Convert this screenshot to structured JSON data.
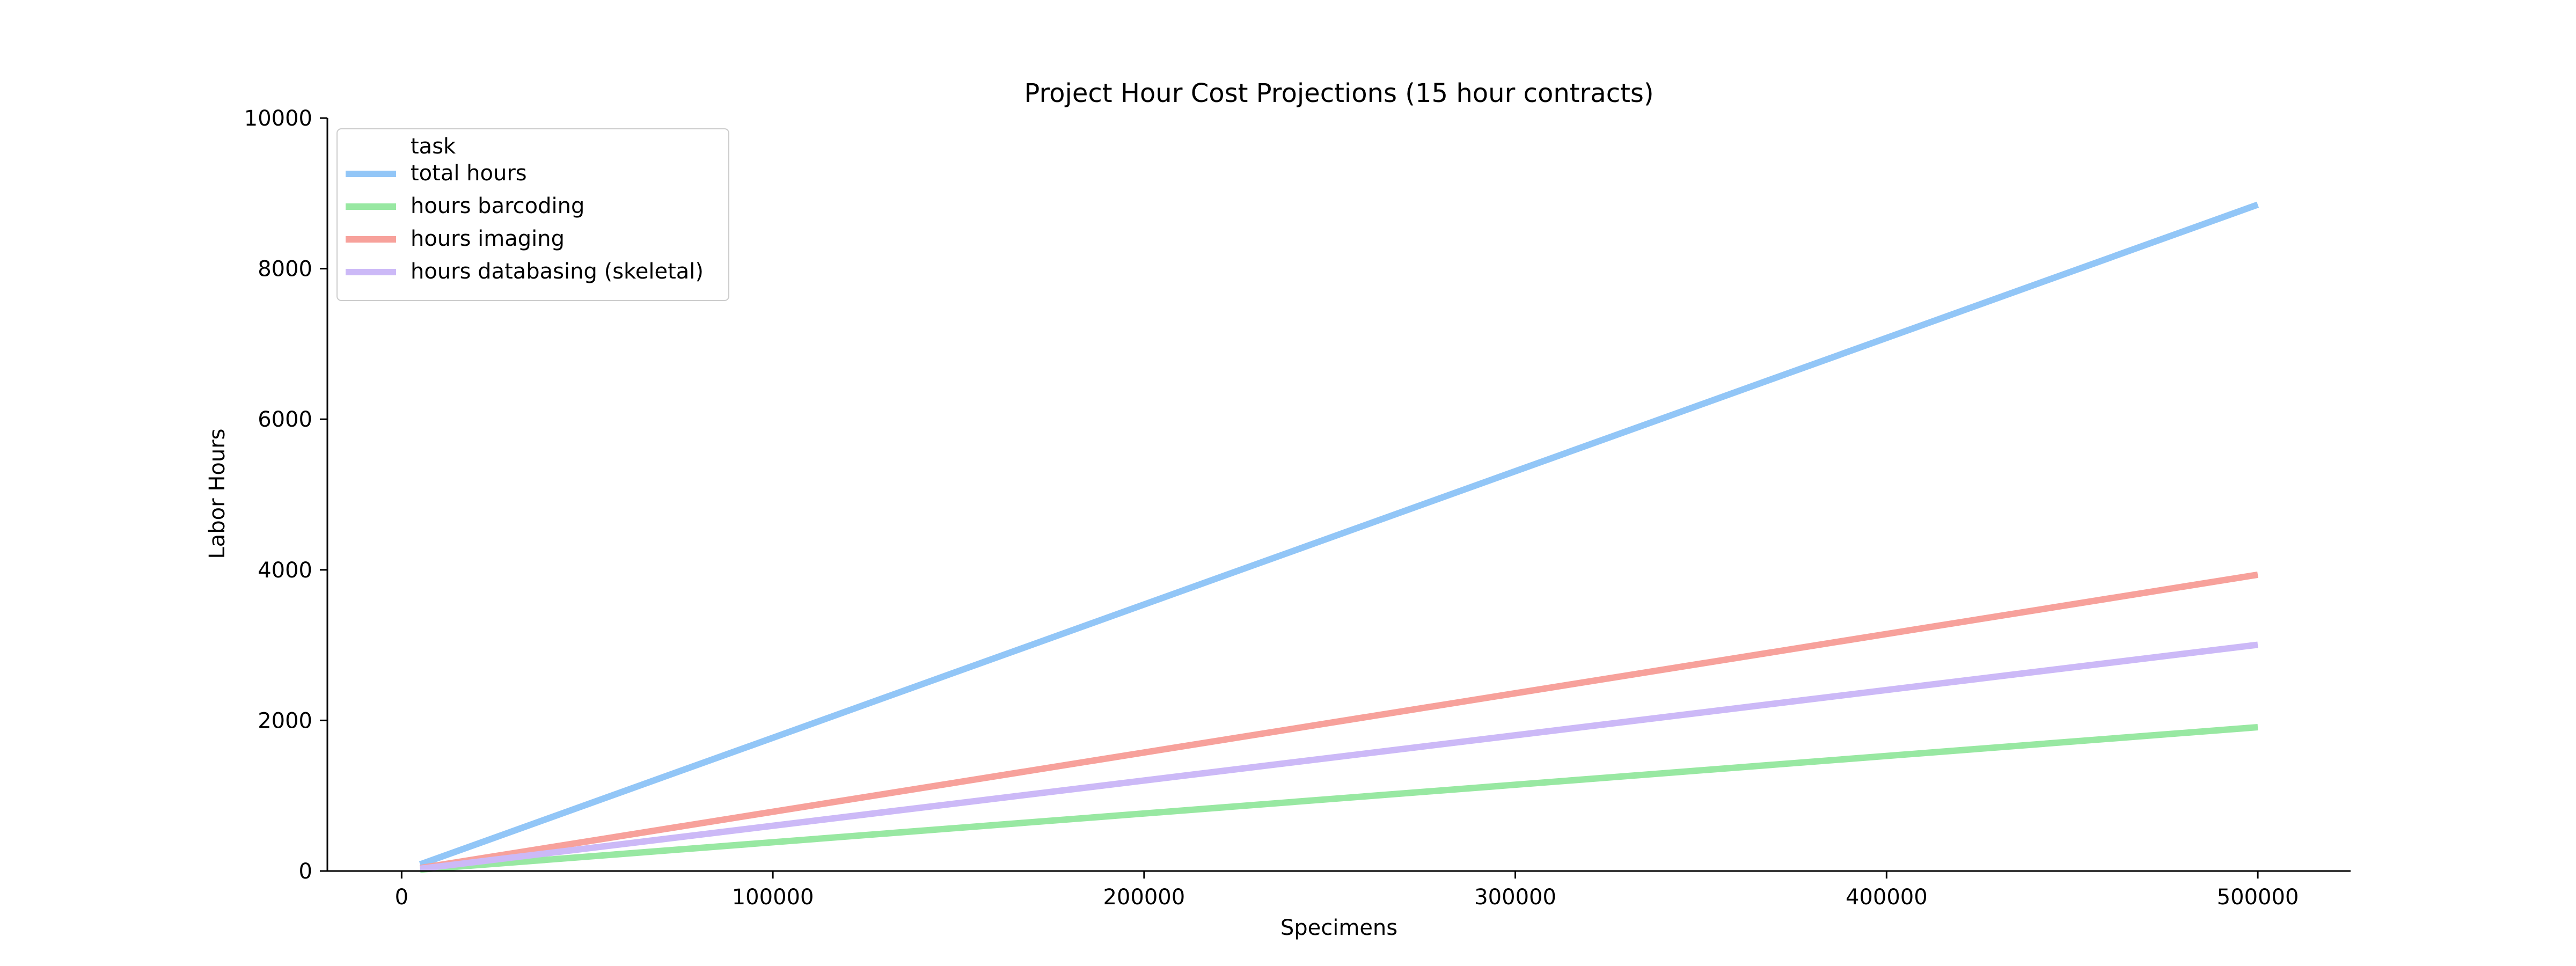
{
  "chart_data": {
    "type": "line",
    "title": "Project Hour Cost Projections (15 hour contracts)",
    "xlabel": "Specimens",
    "ylabel": "Labor Hours",
    "xlim": [
      -20000,
      525000
    ],
    "ylim": [
      0,
      10000
    ],
    "xticks": [
      0,
      100000,
      200000,
      300000,
      400000,
      500000
    ],
    "yticks": [
      0,
      2000,
      4000,
      6000,
      8000,
      10000
    ],
    "grid": false,
    "legend": {
      "title": "task",
      "position": "top-left"
    },
    "series": [
      {
        "name": "total hours",
        "color": "#92c6f7",
        "x": [
          5000,
          500000
        ],
        "y": [
          88,
          8850
        ]
      },
      {
        "name": "hours barcoding",
        "color": "#98e8a2",
        "x": [
          5000,
          500000
        ],
        "y": [
          19,
          1910
        ]
      },
      {
        "name": "hours imaging",
        "color": "#f7a19b",
        "x": [
          5000,
          500000
        ],
        "y": [
          39,
          3935
        ]
      },
      {
        "name": "hours databasing (skeletal)",
        "color": "#ccb9f7",
        "x": [
          5000,
          500000
        ],
        "y": [
          30,
          3005
        ]
      }
    ]
  }
}
